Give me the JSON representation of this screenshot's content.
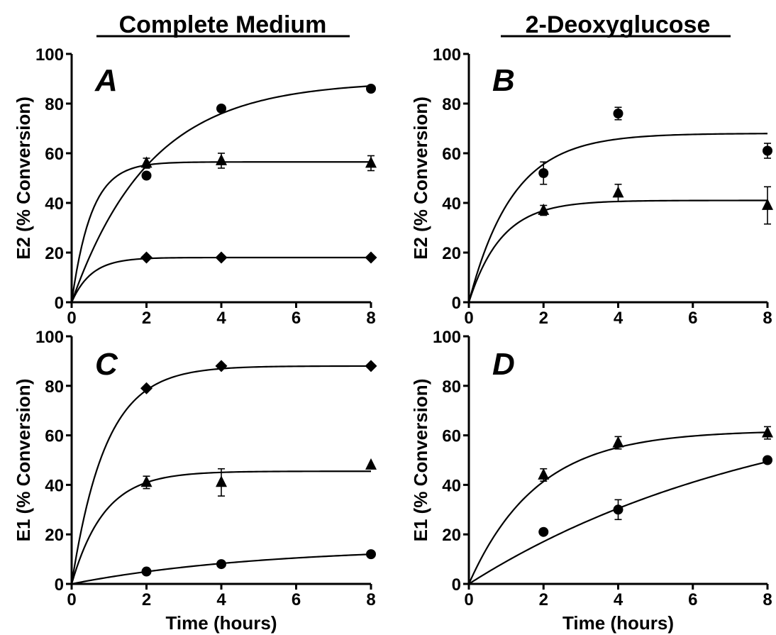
{
  "column_titles": [
    "Complete Medium",
    "2-Deoxyglucose"
  ],
  "chart_data": [
    {
      "type": "scatter",
      "panel_label": "A",
      "column_title": "Complete Medium",
      "xlabel": "",
      "ylabel": "E2 (% Conversion)",
      "xlim": [
        0,
        8
      ],
      "ylim": [
        0,
        100
      ],
      "xticks": [
        0,
        2,
        4,
        6,
        8
      ],
      "yticks": [
        0,
        20,
        40,
        60,
        80,
        100
      ],
      "series": [
        {
          "marker": "circle",
          "points": [
            {
              "x": 0,
              "y": 0
            },
            {
              "x": 2,
              "y": 51
            },
            {
              "x": 4,
              "y": 78
            },
            {
              "x": 8,
              "y": 86
            }
          ],
          "fit": {
            "plateau": 89,
            "k": 0.48
          }
        },
        {
          "marker": "triangle",
          "points": [
            {
              "x": 0,
              "y": 0
            },
            {
              "x": 2,
              "y": 56,
              "err": 2
            },
            {
              "x": 4,
              "y": 57,
              "err": 3
            },
            {
              "x": 8,
              "y": 56,
              "err": 3
            }
          ],
          "fit": {
            "plateau": 56.5,
            "k": 1.9
          }
        },
        {
          "marker": "diamond",
          "points": [
            {
              "x": 0,
              "y": 0
            },
            {
              "x": 2,
              "y": 18
            },
            {
              "x": 4,
              "y": 18
            },
            {
              "x": 8,
              "y": 18
            }
          ],
          "fit": {
            "plateau": 18,
            "k": 1.9
          }
        }
      ]
    },
    {
      "type": "scatter",
      "panel_label": "B",
      "column_title": "2-Deoxyglucose",
      "xlabel": "",
      "ylabel": "E2 (% Conversion)",
      "xlim": [
        0,
        8
      ],
      "ylim": [
        0,
        100
      ],
      "xticks": [
        0,
        2,
        4,
        6,
        8
      ],
      "yticks": [
        0,
        20,
        40,
        60,
        80,
        100
      ],
      "series": [
        {
          "marker": "circle",
          "points": [
            {
              "x": 0,
              "y": 0
            },
            {
              "x": 2,
              "y": 52,
              "err": 4.5
            },
            {
              "x": 4,
              "y": 76,
              "err": 2.5
            },
            {
              "x": 8,
              "y": 61,
              "err": 3
            }
          ],
          "fit": {
            "plateau": 68,
            "k": 0.85
          }
        },
        {
          "marker": "triangle",
          "points": [
            {
              "x": 0,
              "y": 0
            },
            {
              "x": 2,
              "y": 37,
              "err": 2
            },
            {
              "x": 4,
              "y": 44,
              "err": 3.5
            },
            {
              "x": 8,
              "y": 39,
              "err": 7.5
            }
          ],
          "fit": {
            "plateau": 41,
            "k": 1.15
          }
        }
      ]
    },
    {
      "type": "scatter",
      "panel_label": "C",
      "column_title": "Complete Medium",
      "xlabel": "Time (hours)",
      "ylabel": "E1 (% Conversion)",
      "xlim": [
        0,
        8
      ],
      "ylim": [
        0,
        100
      ],
      "xticks": [
        0,
        2,
        4,
        6,
        8
      ],
      "yticks": [
        0,
        20,
        40,
        60,
        80,
        100
      ],
      "series": [
        {
          "marker": "diamond",
          "points": [
            {
              "x": 0,
              "y": 0
            },
            {
              "x": 2,
              "y": 79
            },
            {
              "x": 4,
              "y": 88
            },
            {
              "x": 8,
              "y": 88
            }
          ],
          "fit": {
            "plateau": 88,
            "k": 1.1
          }
        },
        {
          "marker": "triangle",
          "points": [
            {
              "x": 0,
              "y": 0
            },
            {
              "x": 2,
              "y": 41,
              "err": 2.5
            },
            {
              "x": 4,
              "y": 41,
              "err": 5.5
            },
            {
              "x": 8,
              "y": 48
            }
          ],
          "fit": {
            "plateau": 45.5,
            "k": 1.15
          }
        },
        {
          "marker": "circle",
          "points": [
            {
              "x": 0,
              "y": 0
            },
            {
              "x": 2,
              "y": 5
            },
            {
              "x": 4,
              "y": 8
            },
            {
              "x": 8,
              "y": 12
            }
          ],
          "fit": {
            "plateau": 15,
            "k": 0.2
          }
        }
      ]
    },
    {
      "type": "scatter",
      "panel_label": "D",
      "column_title": "2-Deoxyglucose",
      "xlabel": "Time (hours)",
      "ylabel": "E1 (% Conversion)",
      "xlim": [
        0,
        8
      ],
      "ylim": [
        0,
        100
      ],
      "xticks": [
        0,
        2,
        4,
        6,
        8
      ],
      "yticks": [
        0,
        20,
        40,
        60,
        80,
        100
      ],
      "series": [
        {
          "marker": "triangle",
          "points": [
            {
              "x": 0,
              "y": 0
            },
            {
              "x": 2,
              "y": 44,
              "err": 2.5
            },
            {
              "x": 4,
              "y": 57,
              "err": 2.5
            },
            {
              "x": 8,
              "y": 61,
              "err": 2.5
            }
          ],
          "fit": {
            "plateau": 62,
            "k": 0.55
          }
        },
        {
          "marker": "circle",
          "points": [
            {
              "x": 0,
              "y": 0
            },
            {
              "x": 2,
              "y": 21
            },
            {
              "x": 4,
              "y": 30,
              "err": 4
            },
            {
              "x": 8,
              "y": 50
            }
          ],
          "fit": {
            "plateau": 80,
            "k": 0.12
          }
        }
      ]
    }
  ]
}
